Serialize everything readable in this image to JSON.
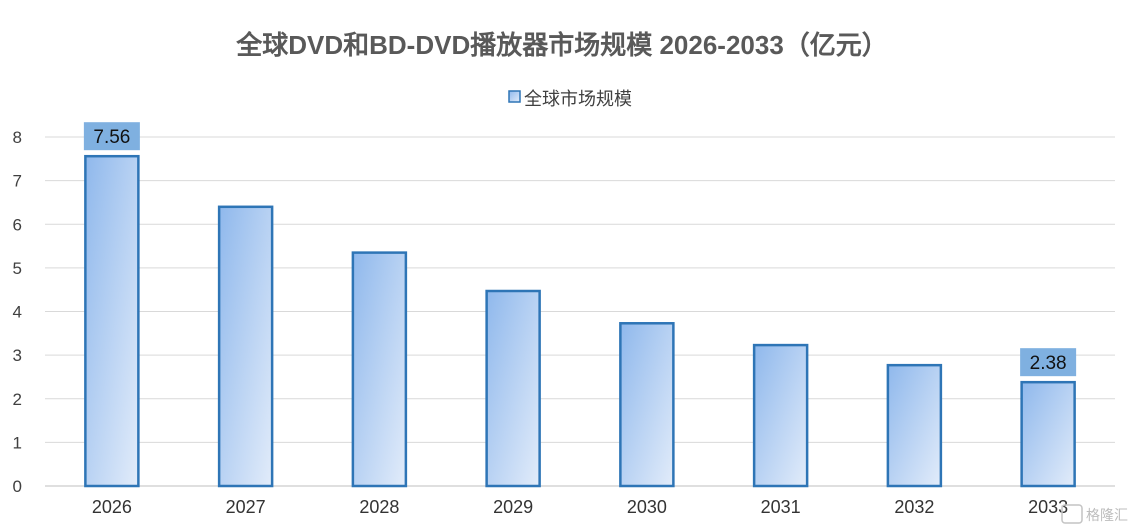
{
  "chart_data": {
    "type": "bar",
    "title": "全球DVD和BD-DVD播放器市场规模 2026-2033（亿元）",
    "categories": [
      "2026",
      "2027",
      "2028",
      "2029",
      "2030",
      "2031",
      "2032",
      "2033"
    ],
    "series": [
      {
        "name": "全球市场规模",
        "values": [
          7.56,
          6.4,
          5.35,
          4.47,
          3.73,
          3.23,
          2.77,
          2.38
        ]
      }
    ],
    "data_labels": [
      {
        "index": 0,
        "text": "7.56"
      },
      {
        "index": 7,
        "text": "2.38"
      }
    ],
    "ylim": [
      0,
      8
    ],
    "yticks": [
      "0",
      "1",
      "2",
      "3",
      "4",
      "5",
      "6",
      "7",
      "8"
    ],
    "grid": true,
    "legend_position": "top-center",
    "colors": {
      "bar_top": "#8fb8ec",
      "bar_bottom": "#dde9f9",
      "bar_border": "#2e75b6",
      "label_bg": "#7fb0e0",
      "grid": "#d9d9d9"
    }
  },
  "watermark": "格隆汇"
}
